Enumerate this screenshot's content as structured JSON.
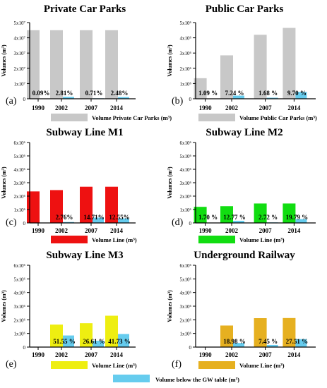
{
  "colors": {
    "below_gw": "#66ccee",
    "private": "#c8c8c8",
    "public": "#c8c8c8",
    "m1": "#ee1111",
    "m2": "#11dd11",
    "m3": "#eeee11",
    "railway": "#e6b020"
  },
  "below_gw_legend": "Volume below the GW table (m³)",
  "chart_data": [
    {
      "type": "bar",
      "panel": "(a)",
      "title": "Private Car Parks",
      "ylabel": "Volumes (m³)",
      "categories": [
        "1990",
        "2002",
        "2007",
        "2014"
      ],
      "series": [
        {
          "name": "Volume Private Car Parks (m³)",
          "values": [
            45000000,
            45000000,
            45000000,
            45000000
          ],
          "color_key": "private"
        },
        {
          "name": "Volume below the GW table (m³)",
          "values": [
            40500,
            1264500,
            319500,
            1116000
          ],
          "color_key": "below_gw"
        }
      ],
      "percent_labels": [
        "0.09%",
        "2.81%",
        "0.71%",
        "2.48%"
      ],
      "ylim": [
        0,
        50000000
      ],
      "yticks": [
        {
          "value": 0,
          "label": "0"
        },
        {
          "value": 10000000,
          "label": "1x10⁷"
        },
        {
          "value": 20000000,
          "label": "2x10⁷"
        },
        {
          "value": 30000000,
          "label": "3x10⁷"
        },
        {
          "value": 40000000,
          "label": "4x10⁷"
        },
        {
          "value": 50000000,
          "label": "5x10⁷"
        }
      ]
    },
    {
      "type": "bar",
      "panel": "(b)",
      "title": "Public Car Parks",
      "ylabel": "Volumes (m³)",
      "categories": [
        "1990",
        "2002",
        "2007",
        "2014"
      ],
      "series": [
        {
          "name": "Volume Public Car Parks (m³)",
          "values": [
            1350000,
            2850000,
            4200000,
            4650000
          ],
          "color_key": "public"
        },
        {
          "name": "Volume below the GW table (m³)",
          "values": [
            14700,
            206300,
            70600,
            451000
          ],
          "color_key": "below_gw"
        }
      ],
      "percent_labels": [
        "1.09 %",
        "7.24 %",
        "1.68 %",
        "9.70 %"
      ],
      "ylim": [
        0,
        5000000
      ],
      "yticks": [
        {
          "value": 0,
          "label": "0"
        },
        {
          "value": 1000000,
          "label": "1x10⁶"
        },
        {
          "value": 2000000,
          "label": "2x10⁶"
        },
        {
          "value": 3000000,
          "label": "3x10⁶"
        },
        {
          "value": 4000000,
          "label": "4x10⁶"
        },
        {
          "value": 5000000,
          "label": "5x10⁶"
        }
      ]
    },
    {
      "type": "bar",
      "panel": "(c)",
      "title": "Subway Line M1",
      "ylabel": "Volumes (m³)",
      "categories": [
        "1990",
        "2002",
        "2007",
        "2014"
      ],
      "series": [
        {
          "name": "Volume Line (m³)",
          "values": [
            2350000,
            2450000,
            2700000,
            2700000
          ],
          "color_key": "m1"
        },
        {
          "name": "Volume below the GW table (m³)",
          "values": [
            0,
            67600,
            398000,
            339000
          ],
          "color_key": "below_gw"
        }
      ],
      "percent_labels": [
        "",
        "2.76%",
        "14.71%",
        "12.55%"
      ],
      "ylim": [
        0,
        6000000
      ],
      "yticks": [
        {
          "value": 0,
          "label": "0"
        },
        {
          "value": 1000000,
          "label": "1x10⁶"
        },
        {
          "value": 2000000,
          "label": "2x10⁶"
        },
        {
          "value": 3000000,
          "label": "3x10⁶"
        },
        {
          "value": 4000000,
          "label": "4x10⁶"
        },
        {
          "value": 5000000,
          "label": "5x10⁶"
        },
        {
          "value": 6000000,
          "label": "6x10⁶"
        }
      ]
    },
    {
      "type": "bar",
      "panel": "(d)",
      "title": "Subway Line M2",
      "ylabel": "Volumes (m³)",
      "categories": [
        "1990",
        "2002",
        "2007",
        "2014"
      ],
      "series": [
        {
          "name": "Volume Line (m³)",
          "values": [
            1200000,
            1250000,
            1450000,
            1450000
          ],
          "color_key": "m2"
        },
        {
          "name": "Volume below the GW table (m³)",
          "values": [
            20400,
            159600,
            39400,
            287000
          ],
          "color_key": "below_gw"
        }
      ],
      "percent_labels": [
        "1.70 %",
        "12.77 %",
        "2.72 %",
        "19.79 %"
      ],
      "ylim": [
        0,
        6000000
      ],
      "yticks": [
        {
          "value": 0,
          "label": "0"
        },
        {
          "value": 1000000,
          "label": "1x10⁶"
        },
        {
          "value": 2000000,
          "label": "2x10⁶"
        },
        {
          "value": 3000000,
          "label": "3x10⁶"
        },
        {
          "value": 4000000,
          "label": "4x10⁶"
        },
        {
          "value": 5000000,
          "label": "5x10⁶"
        },
        {
          "value": 6000000,
          "label": "6x10⁶"
        }
      ]
    },
    {
      "type": "bar",
      "panel": "(e)",
      "title": "Subway Line M3",
      "ylabel": "Volumes (m³)",
      "categories": [
        "1990",
        "2002",
        "2007",
        "2014"
      ],
      "series": [
        {
          "name": "Volume Line (m³)",
          "values": [
            0,
            1650000,
            1750000,
            2300000
          ],
          "color_key": "m3"
        },
        {
          "name": "Volume below the GW table (m³)",
          "values": [
            0,
            850600,
            465700,
            959800
          ],
          "color_key": "below_gw"
        }
      ],
      "percent_labels": [
        "",
        "51.55 %",
        "26.61 %",
        "41.73 %"
      ],
      "ylim": [
        0,
        6000000
      ],
      "yticks": [
        {
          "value": 0,
          "label": "0"
        },
        {
          "value": 1000000,
          "label": "1x10⁶"
        },
        {
          "value": 2000000,
          "label": "2x10⁶"
        },
        {
          "value": 3000000,
          "label": "3x10⁶"
        },
        {
          "value": 4000000,
          "label": "4x10⁶"
        },
        {
          "value": 5000000,
          "label": "5x10⁶"
        },
        {
          "value": 6000000,
          "label": "6x10⁶"
        }
      ]
    },
    {
      "type": "bar",
      "panel": "(f)",
      "title": "Underground Railway",
      "ylabel": "Volumes (m³)",
      "categories": [
        "1990",
        "2002",
        "2007",
        "2014"
      ],
      "series": [
        {
          "name": "Volume Line (m³)",
          "values": [
            0,
            1580000,
            2120000,
            2130000
          ],
          "color_key": "railway"
        },
        {
          "name": "Volume below the GW table (m³)",
          "values": [
            0,
            299900,
            157900,
            586000
          ],
          "color_key": "below_gw"
        }
      ],
      "percent_labels": [
        "",
        "18.98 %",
        "7.45 %",
        "27.51 %"
      ],
      "ylim": [
        0,
        6000000
      ],
      "yticks": [
        {
          "value": 0,
          "label": "0"
        },
        {
          "value": 1000000,
          "label": "1x10⁶"
        },
        {
          "value": 2000000,
          "label": "2x10⁶"
        },
        {
          "value": 3000000,
          "label": "3x10⁶"
        },
        {
          "value": 4000000,
          "label": "4x10⁶"
        },
        {
          "value": 5000000,
          "label": "5x10⁶"
        },
        {
          "value": 6000000,
          "label": "6x10⁶"
        }
      ]
    }
  ]
}
